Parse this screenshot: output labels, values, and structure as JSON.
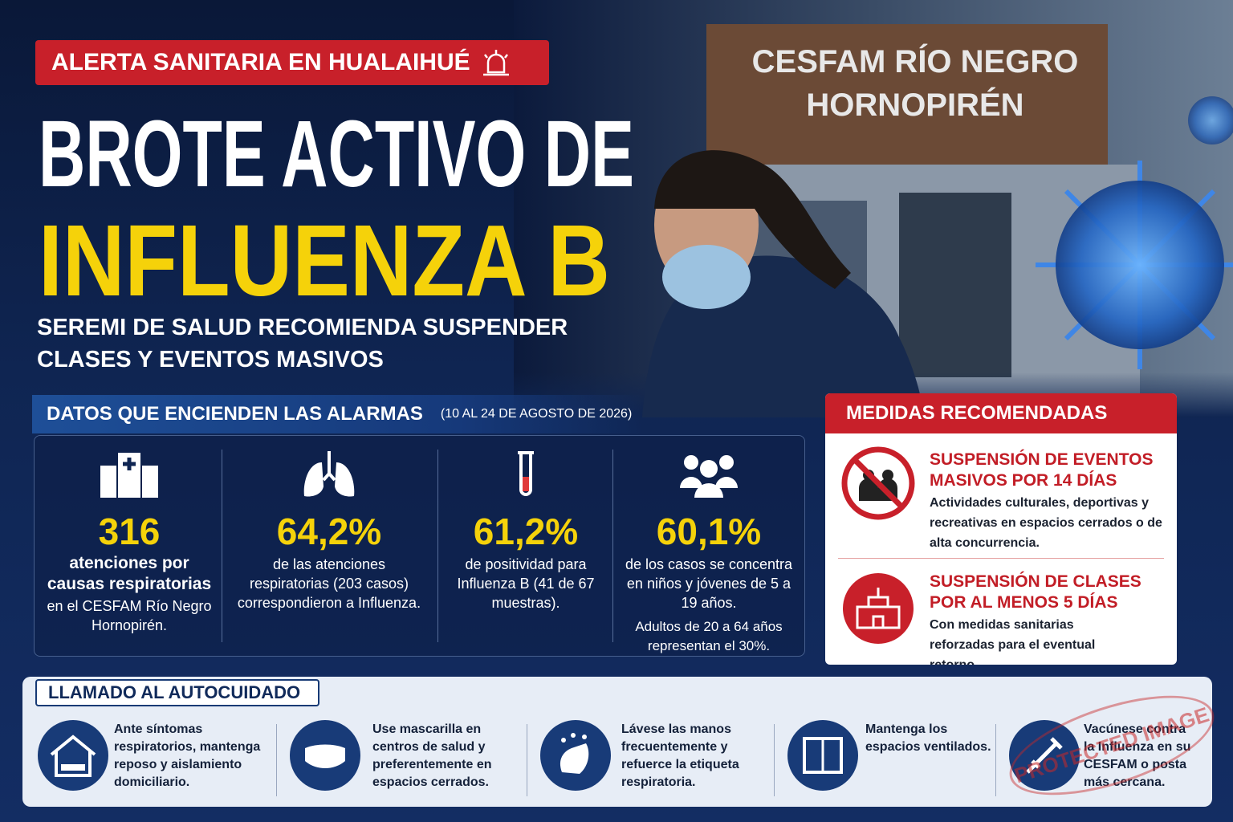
{
  "alert": "ALERTA SANITARIA EN HUALAIHUÉ",
  "title": {
    "line1": "BROTE ACTIVO DE",
    "line2": "INFLUENZA B"
  },
  "subtitle": [
    "SEREMI DE SALUD RECOMIENDA SUSPENDER",
    "CLASES Y EVENTOS MASIVOS"
  ],
  "photo_sign": [
    "CESFAM RÍO NEGRO",
    "HORNOPIRÉN"
  ],
  "data_section": {
    "title": "DATOS QUE ENCIENDEN LAS ALARMAS",
    "period": "(10 AL 24 DE AGOSTO DE 2026)",
    "stats": [
      {
        "value": "316",
        "lead": "atenciones por causas respiratorias",
        "text": "en el CESFAM Río Negro Hornopirén."
      },
      {
        "value": "64,2%",
        "text": "de las atenciones respiratorias (203 casos) correspondieron a Influenza."
      },
      {
        "value": "61,2%",
        "text": "de positividad para Influenza B (41 de 67 muestras)."
      },
      {
        "value": "60,1%",
        "text": "de los casos se concentra en niños y jóvenes de 5 a 19 años.",
        "note": "Adultos de 20 a 64 años representan el 30%."
      }
    ]
  },
  "measures": {
    "title": "MEDIDAS RECOMENDADAS",
    "items": [
      {
        "title": "SUSPENSIÓN DE EVENTOS MASIVOS POR 14 DÍAS",
        "text": "Actividades culturales, deportivas y recreativas en espacios cerrados o de alta concurrencia."
      },
      {
        "title": "SUSPENSIÓN DE CLASES POR AL MENOS 5 DÍAS",
        "text": "Con medidas sanitarias reforzadas para el eventual retorno."
      }
    ]
  },
  "selfcare": {
    "title": "LLAMADO AL AUTOCUIDADO",
    "items": [
      "Ante síntomas respiratorios, mantenga reposo y aislamiento domiciliario.",
      "Use mascarilla en centros de salud y preferentemente en espacios cerrados.",
      "Lávese las manos frecuentemente y refuerce la etiqueta respiratoria.",
      "Mantenga los espacios ventilados.",
      "Vacúnese contra la Influenza en su CESFAM o posta más cercana."
    ]
  },
  "stamp": "PROTECTED IMAGE"
}
